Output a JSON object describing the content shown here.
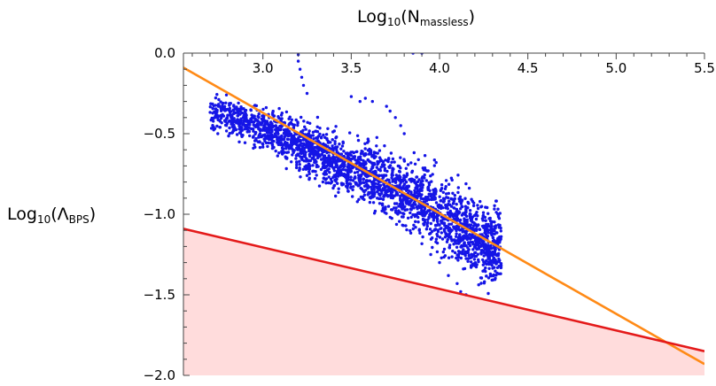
{
  "chart_data": {
    "type": "scatter",
    "title": "",
    "xlabel": {
      "main": "Log",
      "sub1": "10",
      "paren_open": "(N",
      "sub2": "massless",
      "paren_close": ")"
    },
    "ylabel": {
      "main": "Log",
      "sub1": "10",
      "paren_open": "(Λ",
      "sub2": "BPS",
      "paren_close": ")"
    },
    "xlim": [
      2.55,
      5.5
    ],
    "ylim": [
      -2.0,
      0.0
    ],
    "x_axis_position": "top",
    "grid": false,
    "legend": "none",
    "x_ticks": [
      {
        "value": 3.0,
        "label": "3.0"
      },
      {
        "value": 3.5,
        "label": "3.5"
      },
      {
        "value": 4.0,
        "label": "4.0"
      },
      {
        "value": 4.5,
        "label": "4.5"
      },
      {
        "value": 5.0,
        "label": "5.0"
      },
      {
        "value": 5.5,
        "label": "5.5"
      }
    ],
    "y_ticks": [
      {
        "value": 0.0,
        "label": "0.0"
      },
      {
        "value": -0.5,
        "label": "−0.5"
      },
      {
        "value": -1.0,
        "label": "−1.0"
      },
      {
        "value": -1.5,
        "label": "−1.5"
      },
      {
        "value": -2.0,
        "label": "−2.0"
      }
    ],
    "colors": {
      "points": "#1515e6",
      "orange_line": "#ff8a16",
      "red_line": "#e41a1a",
      "shade": "#ffdcdc"
    },
    "scatter": {
      "description": "dense cloud of points scattered around a downward trend",
      "band_center": [
        [
          2.7,
          -0.36
        ],
        [
          3.0,
          -0.47
        ],
        [
          3.3,
          -0.62
        ],
        [
          3.6,
          -0.76
        ],
        [
          3.9,
          -0.92
        ],
        [
          4.1,
          -1.06
        ],
        [
          4.3,
          -1.2
        ]
      ],
      "outliers": [
        [
          3.2,
          -0.01
        ],
        [
          3.2,
          -0.05
        ],
        [
          3.21,
          -0.1
        ],
        [
          3.22,
          -0.15
        ],
        [
          3.23,
          -0.2
        ],
        [
          3.25,
          -0.25
        ],
        [
          3.85,
          -0.0
        ],
        [
          3.9,
          0.0
        ],
        [
          3.5,
          -0.27
        ],
        [
          3.55,
          -0.3
        ],
        [
          3.58,
          -0.28
        ],
        [
          3.62,
          -0.3
        ],
        [
          3.7,
          -0.33
        ],
        [
          3.72,
          -0.36
        ],
        [
          3.75,
          -0.4
        ],
        [
          3.78,
          -0.45
        ],
        [
          3.8,
          -0.5
        ],
        [
          4.0,
          -1.3
        ],
        [
          4.05,
          -1.38
        ],
        [
          4.1,
          -1.43
        ],
        [
          4.12,
          -1.48
        ],
        [
          4.15,
          -1.5
        ],
        [
          3.95,
          -1.25
        ]
      ]
    },
    "lines": [
      {
        "name": "",
        "color": "orange",
        "points": [
          [
            2.55,
            -0.09
          ],
          [
            5.5,
            -1.93
          ]
        ]
      },
      {
        "name": "",
        "color": "red",
        "points": [
          [
            2.55,
            -1.09
          ],
          [
            5.5,
            -1.85
          ]
        ]
      }
    ],
    "shaded_region": "below red line"
  }
}
